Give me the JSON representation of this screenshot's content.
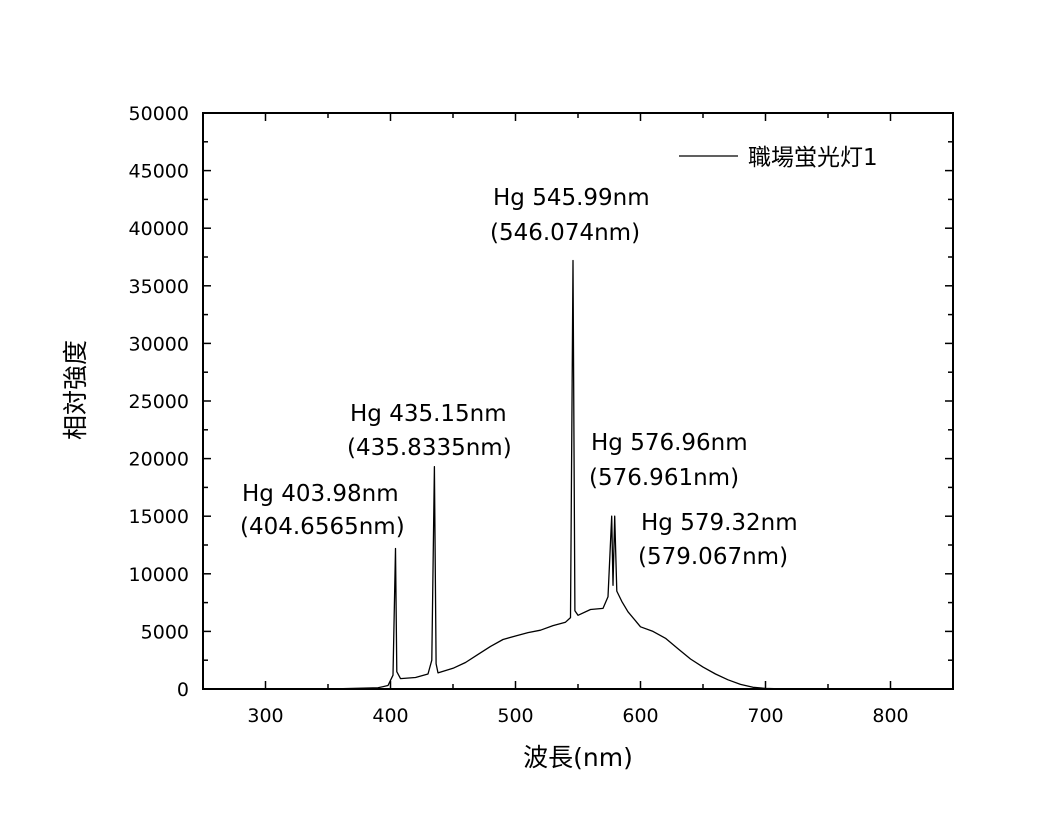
{
  "chart_data": {
    "type": "line",
    "title": "",
    "xlabel": "波長(nm)",
    "ylabel": "相対強度",
    "xlim": [
      250,
      850
    ],
    "ylim": [
      0,
      50000
    ],
    "x_ticks": [
      300,
      400,
      500,
      600,
      700,
      800
    ],
    "y_ticks": [
      0,
      5000,
      10000,
      15000,
      20000,
      25000,
      30000,
      35000,
      40000,
      45000,
      50000
    ],
    "grid": false,
    "legend_position": "top-right",
    "series": [
      {
        "name": "職場蛍光灯1",
        "color": "#000000",
        "x": [
          350,
          390,
          398,
          402,
          403.98,
          405,
          408,
          420,
          430,
          433,
          435.15,
          436.5,
          438,
          450,
          460,
          470,
          480,
          490,
          500,
          510,
          520,
          530,
          540,
          544,
          545.99,
          547.5,
          550,
          560,
          570,
          574,
          576.96,
          578,
          579.32,
          581,
          585,
          590,
          600,
          610,
          620,
          630,
          640,
          650,
          660,
          670,
          680,
          690,
          700,
          710,
          720
        ],
        "y": [
          0,
          100,
          300,
          1200,
          12200,
          1500,
          900,
          1000,
          1300,
          2500,
          19300,
          2200,
          1400,
          1800,
          2300,
          3000,
          3700,
          4300,
          4600,
          4900,
          5100,
          5500,
          5800,
          6200,
          37200,
          6800,
          6400,
          6900,
          7000,
          8000,
          15000,
          9000,
          15000,
          8500,
          7600,
          6700,
          5400,
          5000,
          4400,
          3500,
          2600,
          1900,
          1300,
          800,
          400,
          150,
          50,
          20,
          0
        ]
      }
    ],
    "annotations": [
      {
        "line1": "Hg 403.98nm",
        "line2": "(404.6565nm)"
      },
      {
        "line1": "Hg 435.15nm",
        "line2": "(435.8335nm)"
      },
      {
        "line1": "Hg 545.99nm",
        "line2": "(546.074nm)"
      },
      {
        "line1": "Hg 576.96nm",
        "line2": "(576.961nm)"
      },
      {
        "line1": "Hg 579.32nm",
        "line2": "(579.067nm)"
      }
    ]
  }
}
